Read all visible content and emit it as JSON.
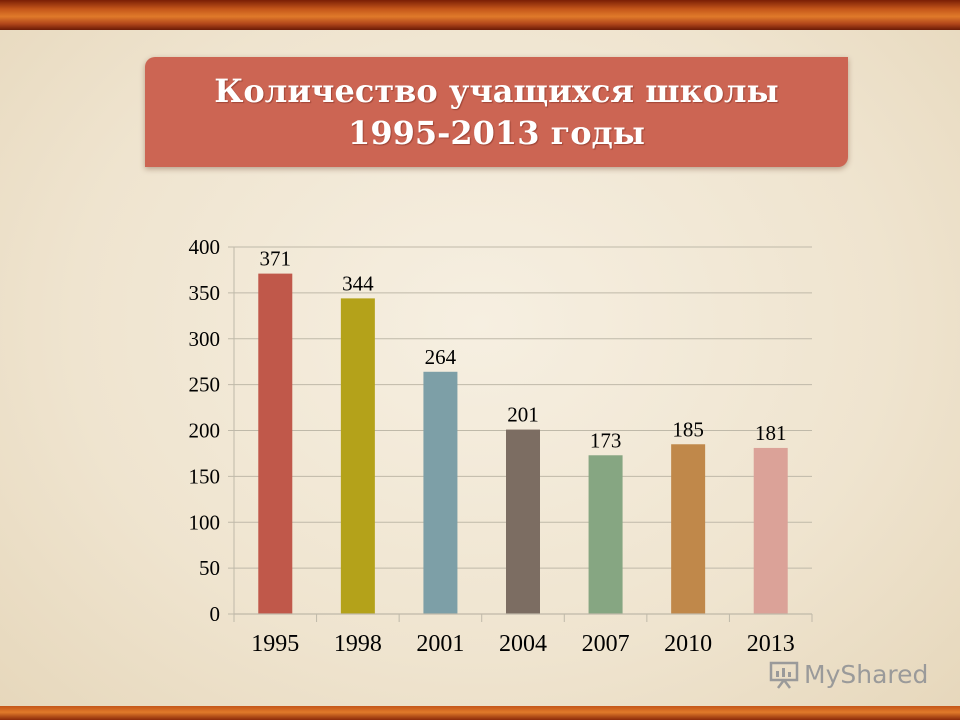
{
  "title": {
    "line1": "Количество учащихся школы",
    "line2": "1995-2013 годы"
  },
  "colors": {
    "title_box": "#cc6553",
    "grid": "#bfb9a9",
    "text": "#000000"
  },
  "chart_data": {
    "type": "bar",
    "categories": [
      "1995",
      "1998",
      "2001",
      "2004",
      "2007",
      "2010",
      "2013"
    ],
    "values": [
      371,
      344,
      264,
      201,
      173,
      185,
      181
    ],
    "data_labels": [
      "371",
      "344",
      "264",
      "201",
      "173",
      "185",
      "181"
    ],
    "bar_colors": [
      "#c0584a",
      "#b4a21a",
      "#7d9fa7",
      "#7c6d62",
      "#86a682",
      "#c0884a",
      "#dba298"
    ],
    "ylim": [
      0,
      400
    ],
    "yticks": [
      "0",
      "50",
      "100",
      "150",
      "200",
      "250",
      "300",
      "350",
      "400"
    ],
    "grid": true,
    "legend": "none",
    "xlabel": "",
    "ylabel": ""
  },
  "watermark": {
    "text": "MyShared",
    "icon": "presentation-board-icon"
  }
}
